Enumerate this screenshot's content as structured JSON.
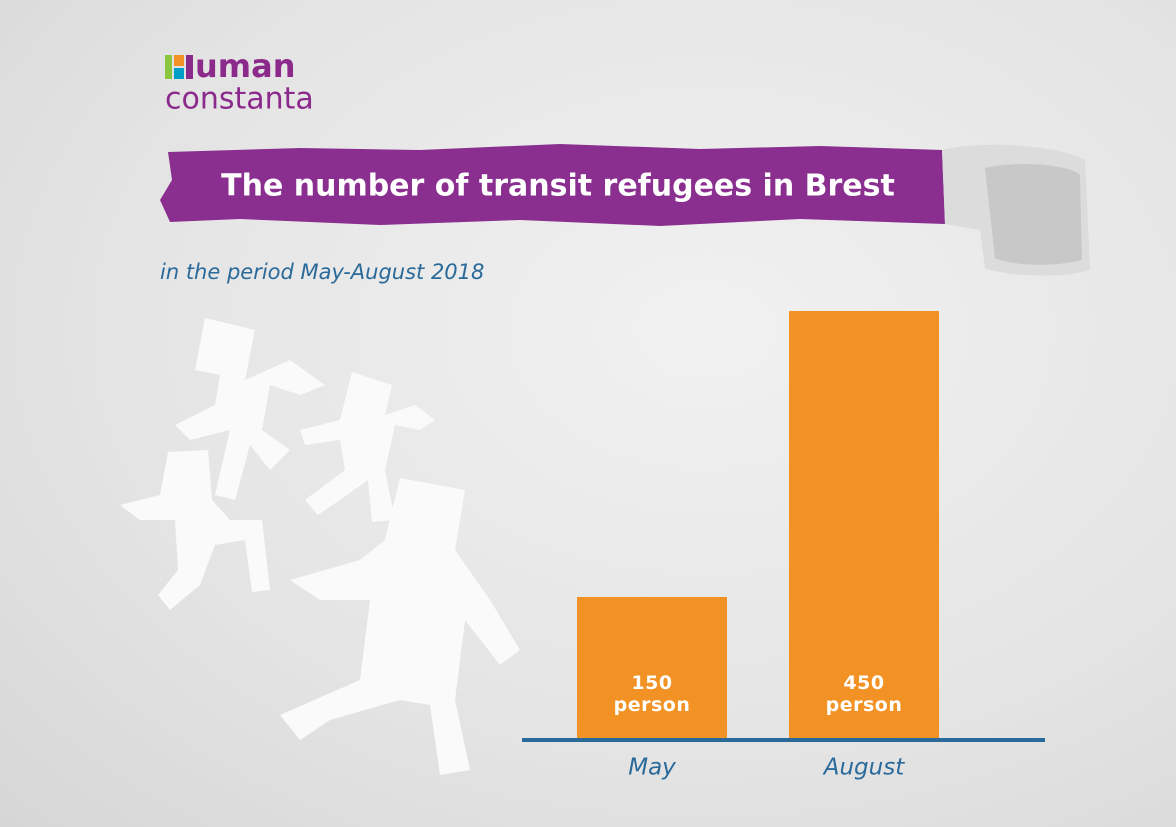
{
  "logo": {
    "line1": "uman",
    "line2": "constanta"
  },
  "chart_data": {
    "type": "bar",
    "title": "The number of transit refugees in Brest",
    "subtitle": "in the period May-August 2018",
    "categories": [
      "May",
      "August"
    ],
    "values": [
      150,
      450
    ],
    "value_labels": [
      "150\nperson",
      "450\nperson"
    ],
    "color": "#f39224",
    "ylim": [
      0,
      450
    ]
  }
}
